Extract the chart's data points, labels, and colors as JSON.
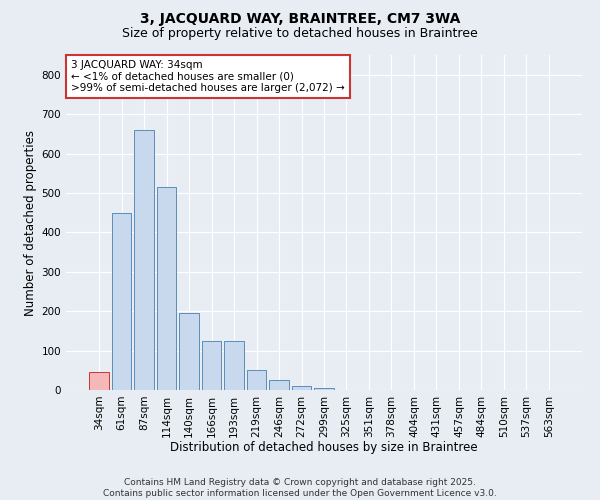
{
  "title1": "3, JACQUARD WAY, BRAINTREE, CM7 3WA",
  "title2": "Size of property relative to detached houses in Braintree",
  "xlabel": "Distribution of detached houses by size in Braintree",
  "ylabel": "Number of detached properties",
  "categories": [
    "34sqm",
    "61sqm",
    "87sqm",
    "114sqm",
    "140sqm",
    "166sqm",
    "193sqm",
    "219sqm",
    "246sqm",
    "272sqm",
    "299sqm",
    "325sqm",
    "351sqm",
    "378sqm",
    "404sqm",
    "431sqm",
    "457sqm",
    "484sqm",
    "510sqm",
    "537sqm",
    "563sqm"
  ],
  "values": [
    45,
    450,
    660,
    515,
    195,
    125,
    125,
    50,
    25,
    10,
    5,
    0,
    0,
    0,
    0,
    0,
    0,
    0,
    0,
    0,
    0
  ],
  "bar_color": "#c9d9ed",
  "bar_edge_color": "#5b8db8",
  "highlight_bar_index": 0,
  "highlight_bar_color": "#f4b8b8",
  "highlight_bar_edge_color": "#cc3333",
  "annotation_text": "3 JACQUARD WAY: 34sqm\n← <1% of detached houses are smaller (0)\n>99% of semi-detached houses are larger (2,072) →",
  "annotation_box_color": "#ffffff",
  "annotation_box_edge_color": "#cc3333",
  "ylim": [
    0,
    850
  ],
  "yticks": [
    0,
    100,
    200,
    300,
    400,
    500,
    600,
    700,
    800
  ],
  "background_color": "#e8edf4",
  "plot_bg_color": "#e8edf4",
  "grid_color": "#ffffff",
  "footer_text": "Contains HM Land Registry data © Crown copyright and database right 2025.\nContains public sector information licensed under the Open Government Licence v3.0.",
  "title1_fontsize": 10,
  "title2_fontsize": 9,
  "xlabel_fontsize": 8.5,
  "ylabel_fontsize": 8.5,
  "tick_fontsize": 7.5,
  "annotation_fontsize": 7.5,
  "footer_fontsize": 6.5
}
